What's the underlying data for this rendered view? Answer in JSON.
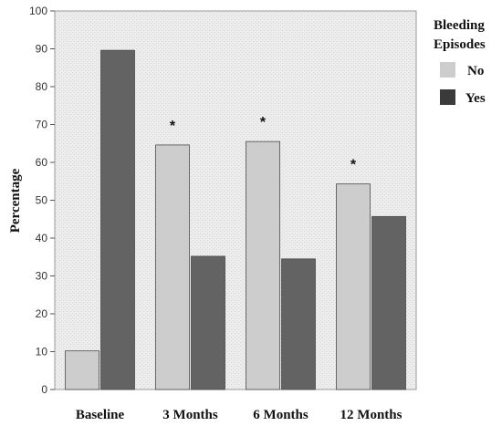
{
  "chart_data": {
    "type": "bar",
    "categories": [
      "Baseline",
      "3 Months",
      "6 Months",
      "12 Months"
    ],
    "series": [
      {
        "name": "No",
        "values": [
          10.2,
          64.6,
          65.5,
          54.3
        ],
        "color": "#cdcdcd"
      },
      {
        "name": "Yes",
        "values": [
          89.6,
          35.2,
          34.5,
          45.7
        ],
        "color": "#636363"
      }
    ],
    "ylabel": "Percentage",
    "ylim": [
      0,
      100
    ],
    "yticks": [
      "0",
      "10",
      "20",
      "30",
      "40",
      "50",
      "60",
      "70",
      "80",
      "90",
      "100"
    ],
    "legend": {
      "title_line1": "Bleeding",
      "title_line2": "Episodes",
      "placement": "right"
    },
    "annotations": [
      {
        "category": "3 Months",
        "text": "*"
      },
      {
        "category": "6 Months",
        "text": "*"
      },
      {
        "category": "12 Months",
        "text": "*"
      }
    ],
    "grid": false
  }
}
